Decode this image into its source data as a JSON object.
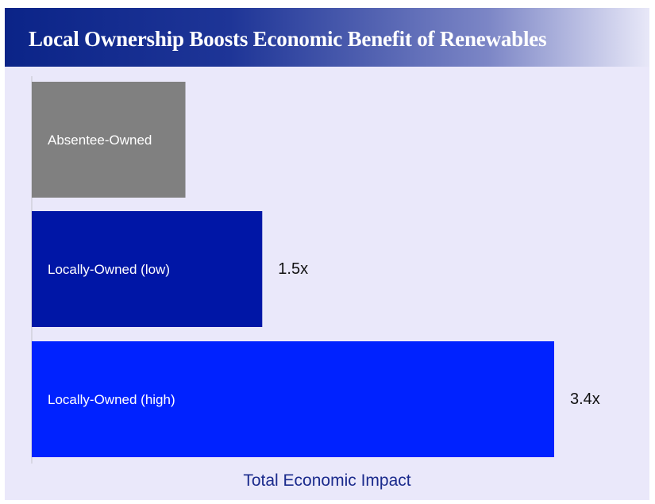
{
  "title": "Local Ownership Boosts Economic Benefit of Renewables",
  "chart_data": {
    "type": "bar",
    "orientation": "horizontal",
    "title": "Local Ownership Boosts Economic Benefit of Renewables",
    "xlabel": "Total Economic Impact",
    "ylabel": "",
    "categories": [
      "Absentee-Owned",
      "Locally-Owned (low)",
      "Locally-Owned (high)"
    ],
    "values": [
      1.0,
      1.5,
      3.4
    ],
    "value_labels": [
      "",
      "1.5x",
      "3.4x"
    ],
    "colors": [
      "#808080",
      "#0016a6",
      "#0022ff"
    ],
    "xlim": [
      0,
      3.8
    ],
    "grid": false,
    "legend": "none"
  }
}
